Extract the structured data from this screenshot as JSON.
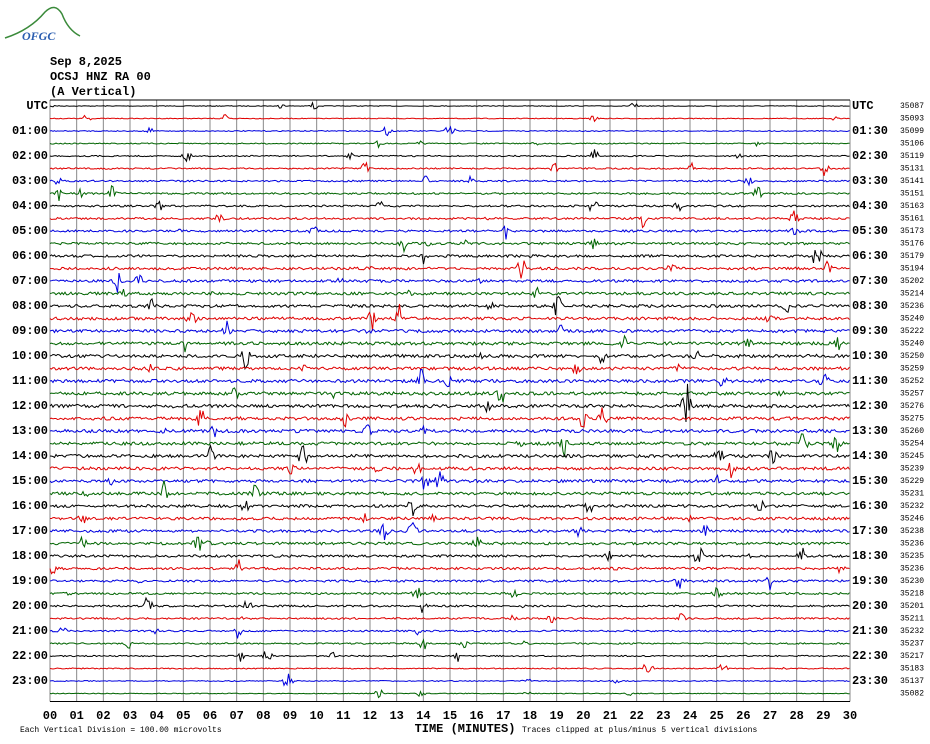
{
  "header": {
    "logo": "OFGC",
    "date": "Sep 8,2025",
    "station": "OCSJ HNZ RA 00",
    "component": "(A Vertical)"
  },
  "left_labels": [
    "UTC",
    "01:00",
    "02:00",
    "03:00",
    "04:00",
    "05:00",
    "06:00",
    "07:00",
    "08:00",
    "09:00",
    "10:00",
    "11:00",
    "12:00",
    "13:00",
    "14:00",
    "15:00",
    "16:00",
    "17:00",
    "18:00",
    "19:00",
    "20:00",
    "21:00",
    "22:00",
    "23:00"
  ],
  "right_labels": [
    "UTC",
    "01:30",
    "02:30",
    "03:30",
    "04:30",
    "05:30",
    "06:30",
    "07:30",
    "08:30",
    "09:30",
    "10:30",
    "11:30",
    "12:30",
    "13:30",
    "14:30",
    "15:30",
    "16:30",
    "17:30",
    "18:30",
    "19:30",
    "20:30",
    "21:30",
    "22:30",
    "23:30"
  ],
  "row_offsets": [
    35087,
    35093,
    35099,
    35106,
    35119,
    35131,
    35141,
    35151,
    35163,
    35161,
    35173,
    35176,
    35179,
    35194,
    35202,
    35214,
    35236,
    35240,
    35222,
    35240,
    35250,
    35259,
    35252,
    35257,
    35276,
    35275,
    35260,
    35254,
    35245,
    35239,
    35229,
    35231,
    35232,
    35246,
    35238,
    35236,
    35235,
    35236,
    35230,
    35218,
    35201,
    35211,
    35232,
    35237,
    35217,
    35183,
    35137,
    35082
  ],
  "x_labels": [
    "00",
    "01",
    "02",
    "03",
    "04",
    "05",
    "06",
    "07",
    "08",
    "09",
    "10",
    "11",
    "12",
    "13",
    "14",
    "15",
    "16",
    "17",
    "18",
    "19",
    "20",
    "21",
    "22",
    "23",
    "24",
    "25",
    "26",
    "27",
    "28",
    "29",
    "30"
  ],
  "footer": {
    "scale": "Each Vertical Division =  100.00 microvolts",
    "axis_title": "TIME (MINUTES)",
    "clip_note": "Traces clipped at plus/minus 5 vertical divisions"
  }
}
